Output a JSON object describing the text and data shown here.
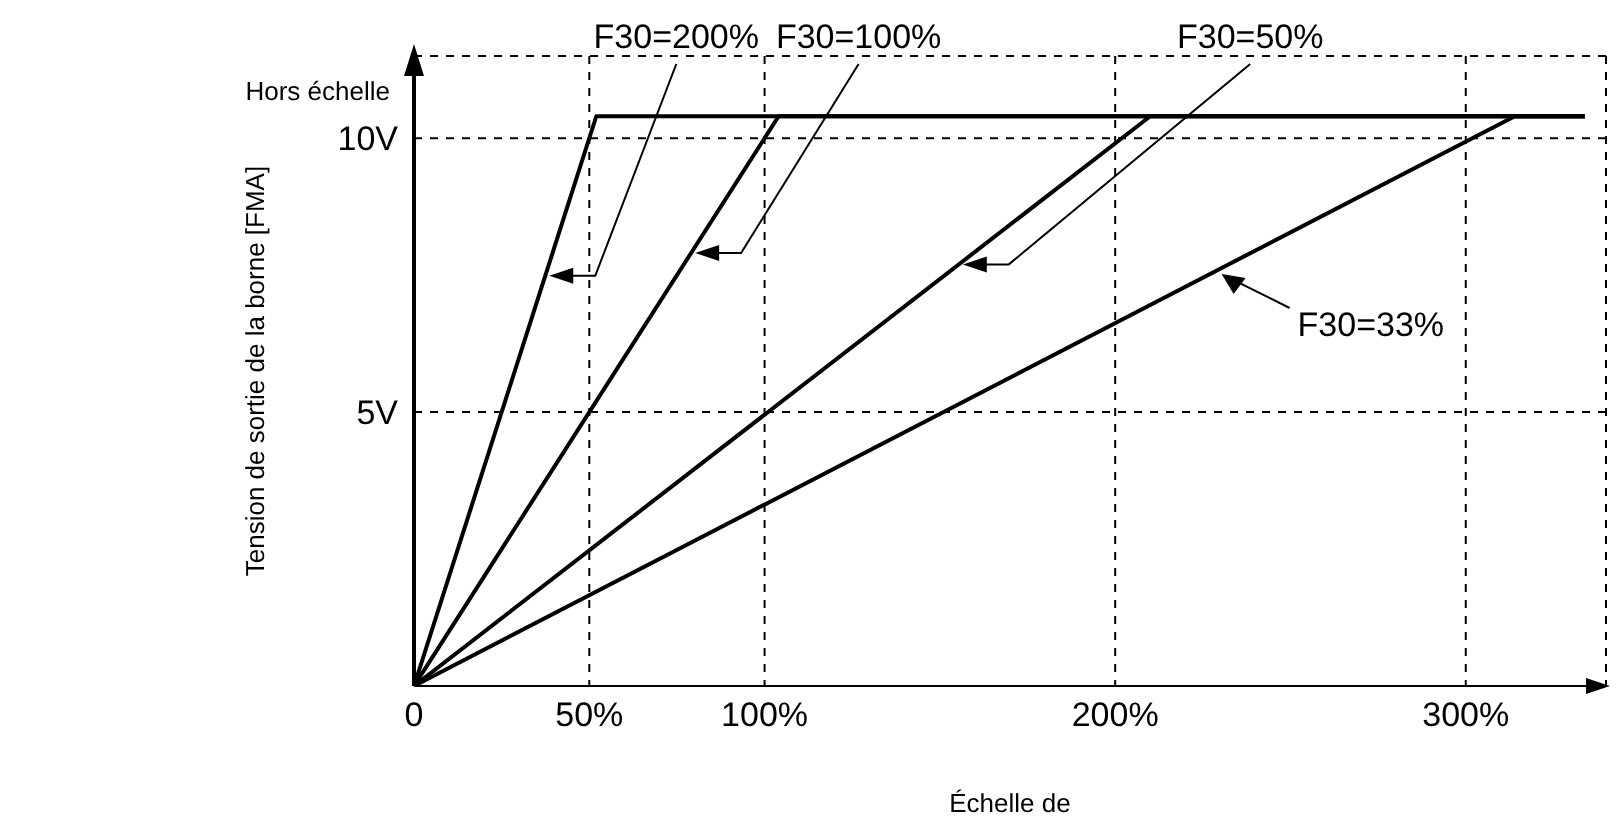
{
  "chart_data": {
    "type": "line",
    "xlabel": "Échelle de",
    "ylabel": "Tension de sortie de la borne [FMA]",
    "xlim": [
      0,
      340
    ],
    "ylim": [
      0,
      11.5
    ],
    "xticks": [
      {
        "value": 0,
        "label": "0"
      },
      {
        "value": 50,
        "label": "50%"
      },
      {
        "value": 100,
        "label": "100%"
      },
      {
        "value": 200,
        "label": "200%"
      },
      {
        "value": 300,
        "label": "300%"
      }
    ],
    "yticks": [
      {
        "value": 0,
        "label": null
      },
      {
        "value": 5,
        "label": "5V"
      },
      {
        "value": 10,
        "label": "10V"
      }
    ],
    "grid": true,
    "legend": false,
    "marker": "none",
    "line_style": "solid",
    "annotations": [
      "Hors échelle"
    ],
    "series": [
      {
        "name": "F30=200%",
        "color": "#000000",
        "x": [
          0,
          52,
          334
        ],
        "values": [
          0,
          10.4,
          10.4
        ]
      },
      {
        "name": "F30=100%",
        "color": "#000000",
        "x": [
          0,
          104,
          334
        ],
        "values": [
          0,
          10.4,
          10.4
        ]
      },
      {
        "name": "F30=50%",
        "color": "#000000",
        "x": [
          0,
          210,
          334
        ],
        "values": [
          0,
          10.4,
          10.4
        ]
      },
      {
        "name": "F30=33%",
        "color": "#000000",
        "x": [
          0,
          314,
          334
        ],
        "values": [
          0,
          10.4,
          10.4
        ]
      }
    ]
  }
}
